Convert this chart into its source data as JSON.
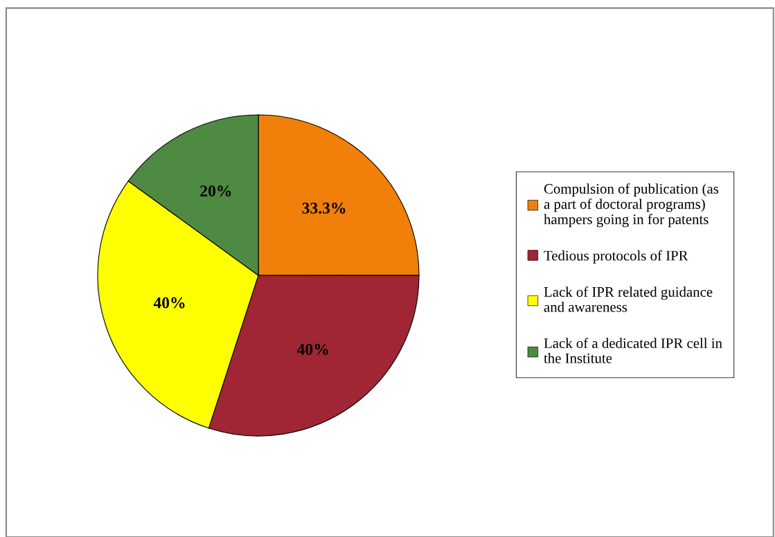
{
  "chart_data": {
    "type": "pie",
    "categories": [
      "Compulsion of publication (as\na part of doctoral programs)\nhampers going in for patents",
      "Tedious protocols of IPR",
      "Lack of IPR related guidance\nand awareness",
      "Lack of a dedicated IPR cell in\nthe Institute"
    ],
    "values": [
      33.3,
      40,
      40,
      20
    ],
    "value_labels": [
      "33.3%",
      "40%",
      "40%",
      "20%"
    ],
    "colors": [
      "#f0800a",
      "#a02535",
      "#ffff00",
      "#4e8a42"
    ],
    "legend": "right"
  }
}
